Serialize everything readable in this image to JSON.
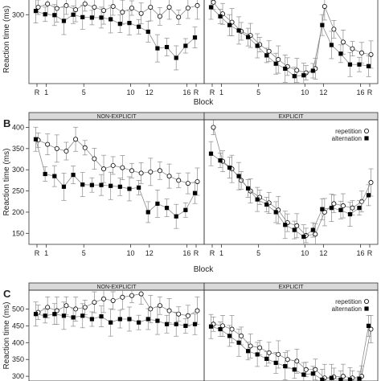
{
  "colors": {
    "strip": "#d9d9d9",
    "line": "#8c8c8c",
    "frame": "#333333",
    "marker": "#000000"
  },
  "chart_data": [
    {
      "panel_label": "",
      "type": "line",
      "xlabel": "Block",
      "ylabel": "Reaction time (ms)",
      "yticks": [
        300
      ],
      "ylim": [
        134,
        347
      ],
      "grid": false,
      "x_tick_labels": [
        "R",
        "1",
        "5",
        "10",
        "12",
        "16",
        "R"
      ],
      "facets": [
        {
          "strip_label": "",
          "x_positions": [
            0,
            1,
            2,
            3,
            4,
            5,
            6,
            7,
            8,
            9,
            10,
            11,
            12,
            13,
            14,
            15,
            16,
            17
          ],
          "series": [
            {
              "name": "",
              "marker": "circle",
              "values": [
                318,
                326,
                315,
                322,
                312,
                326,
                318,
                310,
                320,
                306,
                316,
                303,
                318,
                296,
                318,
                294,
                316,
                322
              ]
            },
            {
              "name": "",
              "marker": "square",
              "values": [
                309,
                301,
                299,
                285,
                300,
                294,
                293,
                293,
                289,
                278,
                280,
                271,
                259,
                219,
                222,
                196,
                225,
                245
              ]
            }
          ]
        },
        {
          "strip_label": "",
          "x_positions": [
            0,
            1,
            2,
            3,
            4,
            5,
            6,
            7,
            8,
            9,
            10,
            11,
            12,
            13,
            14,
            15,
            16,
            17
          ],
          "series": [
            {
              "name": "",
              "marker": "circle",
              "values": [
                330,
                302,
                282,
                260,
                250,
                228,
                212,
                192,
                175,
                166,
                160,
                170,
                320,
                265,
                234,
                218,
                208,
                204
              ]
            },
            {
              "name": "",
              "marker": "square",
              "values": [
                318,
                296,
                275,
                262,
                246,
                225,
                202,
                182,
                170,
                152,
                154,
                165,
                275,
                227,
                206,
                180,
                180,
                176
              ]
            }
          ]
        }
      ]
    },
    {
      "panel_label": "B",
      "type": "line",
      "xlabel": "Block",
      "ylabel": "Reaction time (ms)",
      "yticks": [
        150,
        200,
        250,
        300,
        350,
        400
      ],
      "ylim": [
        124,
        418
      ],
      "grid": false,
      "x_tick_labels": [
        "R",
        "1",
        "5",
        "10",
        "12",
        "16",
        "R"
      ],
      "legend": {
        "position": "top-right",
        "facet": 1,
        "entries": [
          "repetition",
          "alternation"
        ]
      },
      "facets": [
        {
          "strip_label": "NON-EXPLICIT",
          "x_positions": [
            0,
            1,
            2,
            3,
            4,
            5,
            6,
            7,
            8,
            9,
            10,
            11,
            12,
            13,
            14,
            15,
            16,
            17
          ],
          "series": [
            {
              "name": "repetition",
              "marker": "circle",
              "values": [
                370,
                360,
                350,
                344,
                372,
                352,
                326,
                302,
                310,
                305,
                298,
                292,
                295,
                298,
                285,
                275,
                268,
                272
              ]
            },
            {
              "name": "alternation",
              "marker": "square",
              "values": [
                372,
                290,
                285,
                260,
                288,
                265,
                264,
                264,
                262,
                260,
                255,
                258,
                200,
                220,
                210,
                190,
                205,
                245
              ]
            }
          ]
        },
        {
          "strip_label": "EXPLICIT",
          "x_positions": [
            0,
            1,
            2,
            3,
            4,
            5,
            6,
            7,
            8,
            9,
            10,
            11,
            12,
            13,
            14,
            15,
            16,
            17
          ],
          "series": [
            {
              "name": "repetition",
              "marker": "circle",
              "values": [
                400,
                320,
                302,
                275,
                250,
                235,
                222,
                205,
                175,
                168,
                145,
                148,
                200,
                220,
                215,
                210,
                225,
                270
              ]
            },
            {
              "name": "alternation",
              "marker": "square",
              "values": [
                338,
                322,
                305,
                285,
                256,
                230,
                218,
                200,
                170,
                158,
                142,
                158,
                207,
                210,
                205,
                195,
                210,
                240
              ]
            }
          ]
        }
      ]
    },
    {
      "panel_label": "C",
      "type": "line",
      "xlabel": "",
      "ylabel": "Reaction time (ms)",
      "yticks": [
        300,
        350,
        400,
        450,
        500
      ],
      "ylim": [
        286,
        556
      ],
      "grid": false,
      "x_tick_labels": [],
      "legend": {
        "position": "top-right",
        "facet": 1,
        "entries": [
          "repetition",
          "alternation"
        ]
      },
      "facets": [
        {
          "strip_label": "NON-EXPLICIT",
          "x_positions": [
            0,
            1,
            2,
            3,
            4,
            5,
            6,
            7,
            8,
            9,
            10,
            11,
            12,
            13,
            14,
            15,
            16,
            17
          ],
          "series": [
            {
              "name": "repetition",
              "marker": "circle",
              "values": [
                490,
                505,
                495,
                510,
                500,
                505,
                520,
                530,
                525,
                535,
                540,
                545,
                500,
                510,
                495,
                485,
                480,
                495
              ]
            },
            {
              "name": "alternation",
              "marker": "square",
              "values": [
                485,
                480,
                485,
                480,
                475,
                480,
                470,
                478,
                460,
                470,
                470,
                460,
                470,
                465,
                455,
                455,
                450,
                455
              ]
            }
          ]
        },
        {
          "strip_label": "EXPLICIT",
          "x_positions": [
            0,
            1,
            2,
            3,
            4,
            5,
            6,
            7,
            8,
            9,
            10,
            11,
            12,
            13,
            14,
            15,
            16,
            17
          ],
          "series": [
            {
              "name": "repetition",
              "marker": "circle",
              "values": [
                455,
                450,
                440,
                420,
                390,
                385,
                370,
                365,
                350,
                345,
                320,
                320,
                295,
                298,
                300,
                295,
                300,
                440
              ]
            },
            {
              "name": "alternation",
              "marker": "square",
              "values": [
                448,
                440,
                420,
                400,
                375,
                365,
                352,
                340,
                330,
                320,
                305,
                308,
                290,
                295,
                290,
                290,
                293,
                450
              ]
            }
          ]
        }
      ]
    }
  ]
}
